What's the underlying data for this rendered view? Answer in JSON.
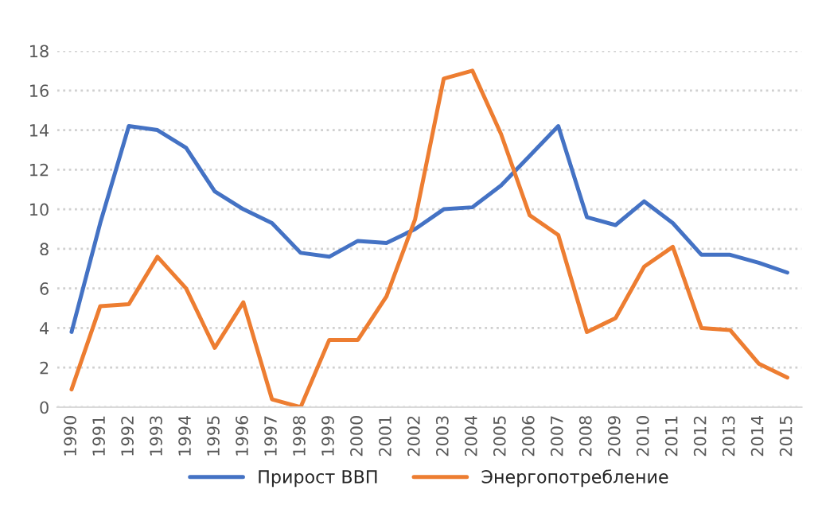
{
  "chart_data": {
    "type": "line",
    "categories": [
      "1990",
      "1991",
      "1992",
      "1993",
      "1994",
      "1995",
      "1996",
      "1997",
      "1998",
      "1999",
      "2000",
      "2001",
      "2002",
      "2003",
      "2004",
      "2005",
      "2006",
      "2007",
      "2008",
      "2009",
      "2010",
      "2011",
      "2012",
      "2013",
      "2014",
      "2015"
    ],
    "series": [
      {
        "name": "Прирост ВВП",
        "color": "#4472c4",
        "values": [
          3.8,
          9.3,
          14.2,
          14.0,
          13.1,
          10.9,
          10.0,
          9.3,
          7.8,
          7.6,
          8.4,
          8.3,
          9.0,
          10.0,
          10.1,
          11.2,
          12.7,
          14.2,
          9.6,
          9.2,
          10.4,
          9.3,
          7.7,
          7.7,
          7.3,
          6.8
        ]
      },
      {
        "name": "Энергопотребление",
        "color": "#ed7d31",
        "values": [
          0.9,
          5.1,
          5.2,
          7.6,
          6.0,
          3.0,
          5.3,
          0.4,
          0.0,
          3.4,
          3.4,
          5.6,
          9.5,
          16.6,
          17.0,
          13.8,
          9.7,
          8.7,
          3.8,
          4.5,
          7.1,
          8.1,
          4.0,
          3.9,
          2.2,
          1.5
        ]
      }
    ],
    "ylim": [
      0,
      18
    ],
    "yticks": [
      0,
      2,
      4,
      6,
      8,
      10,
      12,
      14,
      16,
      18
    ],
    "grid": "y",
    "legend": "bottom",
    "marker": "none",
    "line_style": "solid"
  }
}
